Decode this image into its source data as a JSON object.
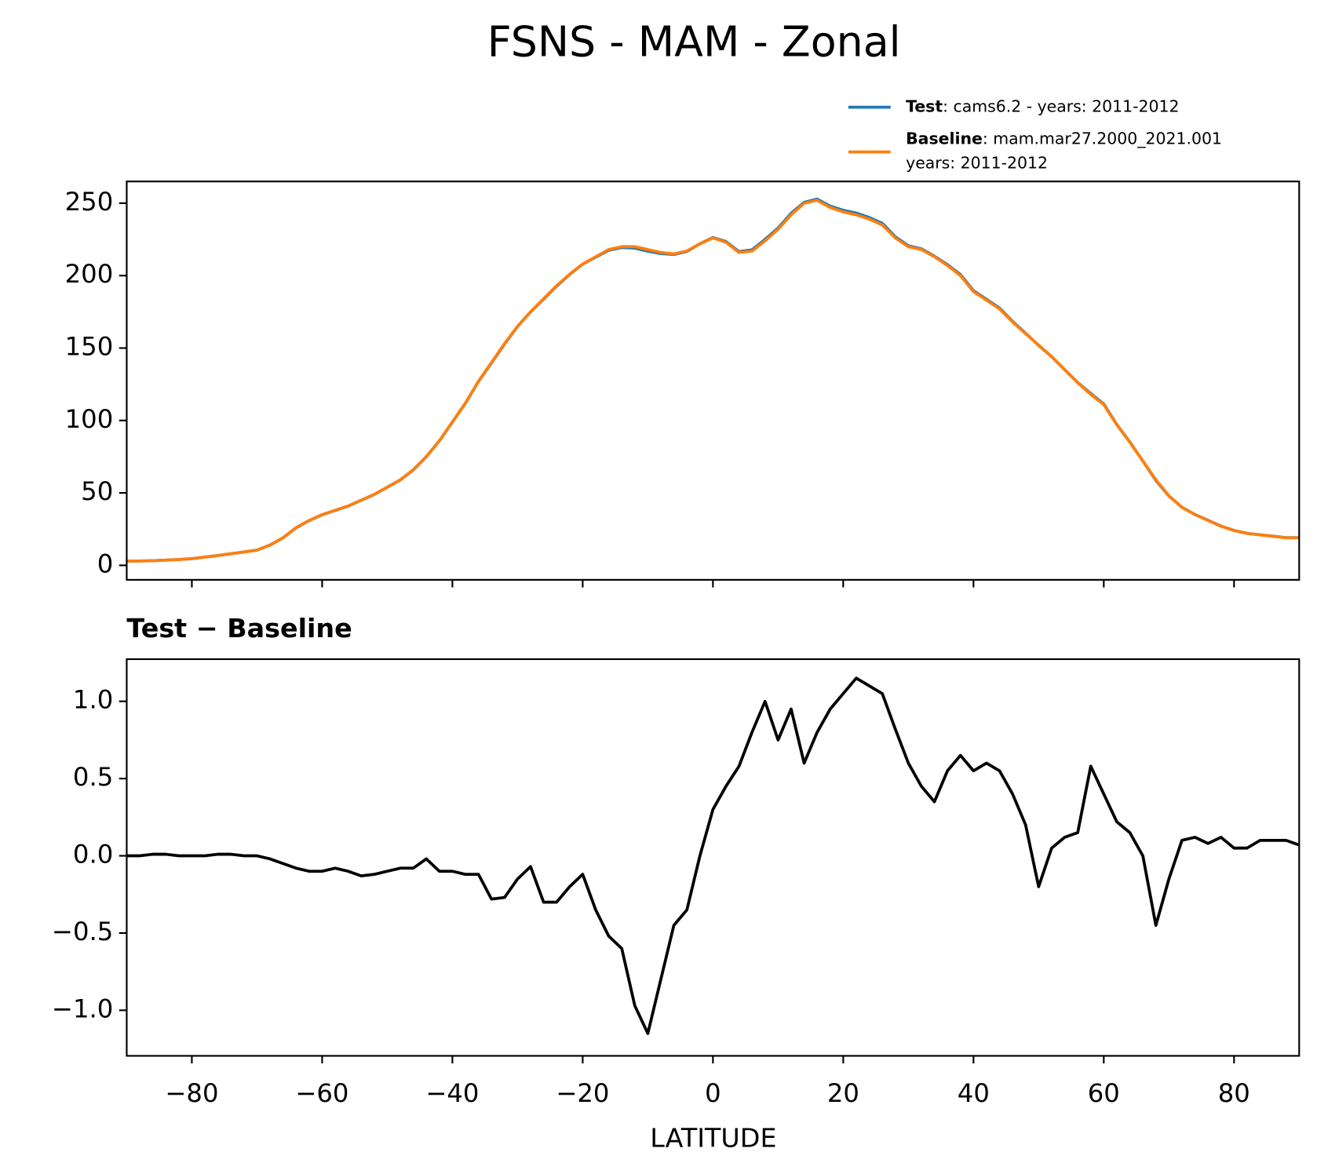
{
  "chart_data": [
    {
      "type": "line",
      "title": "FSNS - MAM - Zonal",
      "x": [
        -90,
        -88,
        -86,
        -84,
        -82,
        -80,
        -78,
        -76,
        -74,
        -72,
        -70,
        -68,
        -66,
        -64,
        -62,
        -60,
        -58,
        -56,
        -54,
        -52,
        -50,
        -48,
        -46,
        -44,
        -42,
        -40,
        -38,
        -36,
        -34,
        -32,
        -30,
        -28,
        -26,
        -24,
        -22,
        -20,
        -18,
        -16,
        -14,
        -12,
        -10,
        -8,
        -6,
        -4,
        -2,
        0,
        2,
        4,
        6,
        8,
        10,
        12,
        14,
        16,
        18,
        20,
        22,
        24,
        26,
        28,
        30,
        32,
        34,
        36,
        38,
        40,
        42,
        44,
        46,
        48,
        50,
        52,
        54,
        56,
        58,
        60,
        62,
        64,
        66,
        68,
        70,
        72,
        74,
        76,
        78,
        80,
        82,
        84,
        86,
        88,
        90
      ],
      "series": [
        {
          "name": "Test",
          "legend_text": [
            ": cams6.2 - years: 2011-2012"
          ],
          "color": "#1f77b4",
          "values": [
            3,
            3,
            3.2,
            3.6,
            4,
            4.6,
            5.7,
            6.8,
            8,
            9.2,
            10.5,
            14.0,
            19.0,
            25.9,
            30.9,
            34.9,
            37.9,
            40.9,
            44.9,
            48.9,
            53.9,
            58.9,
            65.9,
            75.0,
            85.9,
            98.9,
            111.9,
            126.9,
            139.7,
            152.7,
            164.9,
            174.9,
            183.7,
            192.7,
            200.8,
            207.9,
            212.7,
            217.5,
            219.4,
            219.0,
            216.9,
            215.2,
            214.6,
            216.7,
            222.0,
            226.3,
            223.5,
            216.6,
            217.8,
            225.0,
            232.8,
            243.0,
            250.6,
            252.8,
            248.0,
            245.1,
            243.2,
            240.1,
            236.1,
            226.8,
            220.6,
            218.5,
            213.4,
            207.6,
            200.7,
            189.6,
            183.6,
            177.6,
            168.4,
            160.2,
            151.8,
            144.1,
            135.1,
            126.2,
            118.6,
            111.4,
            97.2,
            85.2,
            72.0,
            58.6,
            47.9,
            40.1,
            35.1,
            31.1,
            27.1,
            24.1,
            22.1,
            21.1,
            20.1,
            19.1,
            19.1
          ]
        },
        {
          "name": "Baseline",
          "legend_text": [
            ": mam.mar27.2000_2021.001",
            "years: 2011-2012"
          ],
          "color": "#ff7f0e",
          "values": [
            3,
            3,
            3.2,
            3.6,
            4,
            4.6,
            5.7,
            6.8,
            8,
            9.2,
            10.5,
            14,
            19,
            26,
            31,
            35,
            38,
            41,
            45,
            49,
            54,
            59,
            66,
            75,
            86,
            99,
            112,
            127,
            140,
            153,
            165,
            175,
            184,
            193,
            201,
            208,
            213,
            218,
            220,
            220,
            218,
            216,
            215,
            217,
            222,
            226,
            223,
            216,
            217,
            224,
            232,
            242,
            250,
            252,
            247,
            244,
            242,
            239,
            235,
            226,
            220,
            218,
            213,
            207,
            200,
            189,
            183,
            177,
            168,
            160,
            152,
            144,
            135,
            126,
            118,
            111,
            97,
            85,
            72,
            59,
            48,
            40,
            35,
            31,
            27,
            24,
            22,
            21,
            20,
            19,
            19
          ]
        }
      ],
      "xlim": [
        -90,
        90
      ],
      "xticks": [
        -80,
        -60,
        -40,
        -20,
        0,
        20,
        40,
        60,
        80
      ],
      "ylim": [
        -10,
        265
      ],
      "yticks": [
        0,
        50,
        100,
        150,
        200,
        250
      ]
    },
    {
      "type": "line",
      "title": "Test − Baseline",
      "xlabel": "LATITUDE",
      "x": [
        -90,
        -88,
        -86,
        -84,
        -82,
        -80,
        -78,
        -76,
        -74,
        -72,
        -70,
        -68,
        -66,
        -64,
        -62,
        -60,
        -58,
        -56,
        -54,
        -52,
        -50,
        -48,
        -46,
        -44,
        -42,
        -40,
        -38,
        -36,
        -34,
        -32,
        -30,
        -28,
        -26,
        -24,
        -22,
        -20,
        -18,
        -16,
        -14,
        -12,
        -10,
        -8,
        -6,
        -4,
        -2,
        0,
        2,
        4,
        6,
        8,
        10,
        12,
        14,
        16,
        18,
        20,
        22,
        24,
        26,
        28,
        30,
        32,
        34,
        36,
        38,
        40,
        42,
        44,
        46,
        48,
        50,
        52,
        54,
        56,
        58,
        60,
        62,
        64,
        66,
        68,
        70,
        72,
        74,
        76,
        78,
        80,
        82,
        84,
        86,
        88,
        90
      ],
      "series": [
        {
          "color": "#000000",
          "values": [
            0,
            0,
            0.01,
            0.01,
            0,
            0,
            0,
            0.01,
            0.01,
            0,
            0,
            -0.02,
            -0.05,
            -0.08,
            -0.1,
            -0.1,
            -0.08,
            -0.1,
            -0.13,
            -0.12,
            -0.1,
            -0.08,
            -0.08,
            -0.02,
            -0.1,
            -0.1,
            -0.12,
            -0.12,
            -0.28,
            -0.27,
            -0.15,
            -0.07,
            -0.3,
            -0.3,
            -0.2,
            -0.12,
            -0.35,
            -0.52,
            -0.6,
            -0.97,
            -1.15,
            -0.8,
            -0.45,
            -0.35,
            0,
            0.3,
            0.45,
            0.58,
            0.8,
            1.0,
            0.75,
            0.95,
            0.6,
            0.8,
            0.95,
            1.05,
            1.15,
            1.1,
            1.05,
            0.82,
            0.6,
            0.45,
            0.35,
            0.55,
            0.65,
            0.55,
            0.6,
            0.55,
            0.4,
            0.2,
            -0.2,
            0.05,
            0.12,
            0.15,
            0.58,
            0.4,
            0.22,
            0.15,
            0,
            -0.45,
            -0.15,
            0.1,
            0.12,
            0.08,
            0.12,
            0.05,
            0.05,
            0.1,
            0.1,
            0.1,
            0.07
          ]
        }
      ],
      "xlim": [
        -90,
        90
      ],
      "xticks": [
        {
          "value": -80,
          "label": "−80"
        },
        {
          "value": -60,
          "label": "−60"
        },
        {
          "value": -40,
          "label": "−40"
        },
        {
          "value": -20,
          "label": "−20"
        },
        0,
        20,
        40,
        60,
        80
      ],
      "ylim": [
        -1.295,
        1.273
      ],
      "yticks": [
        {
          "value": -1.0,
          "label": "−1.0"
        },
        {
          "value": -0.5,
          "label": "−0.5"
        },
        {
          "value": 0,
          "label": "0.0"
        },
        0.5,
        {
          "value": 1.0,
          "label": "1.0"
        }
      ]
    }
  ]
}
